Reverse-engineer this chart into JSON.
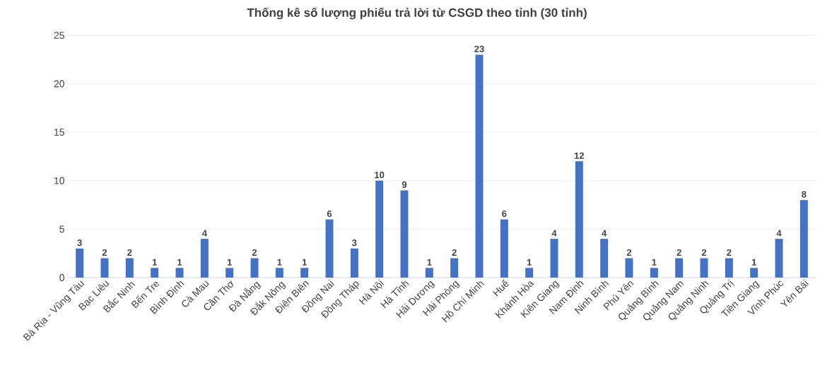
{
  "chart_data": {
    "type": "bar",
    "title": "Thống kê số lượng phiếu trả lời từ CSGD theo tỉnh (30 tỉnh)",
    "categories": [
      "Bà Rịa - Vũng Tàu",
      "Bạc Liêu",
      "Bắc Ninh",
      "Bến Tre",
      "Bình Định",
      "Cà Mau",
      "Cần Thơ",
      "Đà Nẵng",
      "Đắk Nông",
      "Điện Biên",
      "Đồng Nai",
      "Đồng Tháp",
      "Hà Nội",
      "Hà Tĩnh",
      "Hải Dương",
      "Hải Phòng",
      "Hồ Chí Minh",
      "Huế",
      "Khánh Hòa",
      "Kiên Giang",
      "Nam Định",
      "Ninh Bình",
      "Phú Yên",
      "Quảng Bình",
      "Quảng Nam",
      "Quảng Ninh",
      "Quảng Trị",
      "Tiền Giang",
      "Vĩnh Phúc",
      "Yên Bái"
    ],
    "values": [
      3,
      2,
      2,
      1,
      1,
      4,
      1,
      2,
      1,
      1,
      6,
      3,
      10,
      9,
      1,
      2,
      23,
      6,
      1,
      4,
      12,
      4,
      2,
      1,
      2,
      2,
      2,
      1,
      4,
      8
    ],
    "color": "#4472c4",
    "ylim": [
      0,
      25
    ],
    "yticks": [
      0,
      5,
      10,
      15,
      20,
      25
    ],
    "grid": "y",
    "data_labels": true
  }
}
